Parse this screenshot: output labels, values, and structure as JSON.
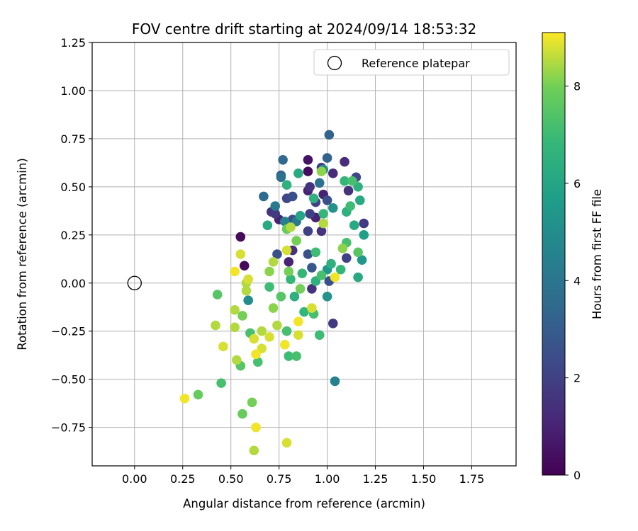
{
  "chart_data": {
    "type": "scatter",
    "title": "FOV centre drift starting at 2024/09/14 18:53:32",
    "xlabel": "Angular distance from reference (arcmin)",
    "ylabel": "Rotation from reference (arcmin)",
    "xlim": [
      -0.22,
      1.98
    ],
    "ylim": [
      -0.95,
      1.25
    ],
    "xticks": [
      0.0,
      0.25,
      0.5,
      0.75,
      1.0,
      1.25,
      1.5,
      1.75
    ],
    "xtick_labels": [
      "0.00",
      "0.25",
      "0.50",
      "0.75",
      "1.00",
      "1.25",
      "1.50",
      "1.75"
    ],
    "yticks": [
      -0.75,
      -0.5,
      -0.25,
      0.0,
      0.25,
      0.5,
      0.75,
      1.0,
      1.25
    ],
    "ytick_labels": [
      "−0.75",
      "−0.50",
      "−0.25",
      "0.00",
      "0.25",
      "0.50",
      "0.75",
      "1.00",
      "1.25"
    ],
    "grid": true,
    "legend": {
      "placement": "upper-right",
      "label": "Reference platepar"
    },
    "reference_point": {
      "x": 0.0,
      "y": 0.0
    },
    "colorbar": {
      "label": "Hours from first FF file",
      "colormap": "viridis",
      "range": [
        0,
        9.1
      ],
      "ticks": [
        0,
        2,
        4,
        6,
        8
      ],
      "tick_labels": [
        "0",
        "2",
        "4",
        "6",
        "8"
      ]
    },
    "points": [
      {
        "x": 0.55,
        "y": 0.24,
        "h": 0.3
      },
      {
        "x": 0.57,
        "y": 0.09,
        "h": 0.2
      },
      {
        "x": 0.9,
        "y": 0.64,
        "h": 0.5
      },
      {
        "x": 0.9,
        "y": 0.58,
        "h": 0.3
      },
      {
        "x": 0.91,
        "y": 0.5,
        "h": 1.5
      },
      {
        "x": 0.98,
        "y": 0.46,
        "h": 1.0
      },
      {
        "x": 1.03,
        "y": 0.57,
        "h": 1.2
      },
      {
        "x": 0.97,
        "y": 0.6,
        "h": 1.8
      },
      {
        "x": 1.09,
        "y": 0.63,
        "h": 1.3
      },
      {
        "x": 0.9,
        "y": 0.48,
        "h": 1.0
      },
      {
        "x": 0.94,
        "y": 0.42,
        "h": 2.0
      },
      {
        "x": 0.82,
        "y": 0.45,
        "h": 2.5
      },
      {
        "x": 0.79,
        "y": 0.44,
        "h": 2.2
      },
      {
        "x": 0.71,
        "y": 0.37,
        "h": 1.5
      },
      {
        "x": 0.73,
        "y": 0.36,
        "h": 1.8
      },
      {
        "x": 0.75,
        "y": 0.33,
        "h": 1.0
      },
      {
        "x": 0.82,
        "y": 0.33,
        "h": 2.5
      },
      {
        "x": 0.91,
        "y": 0.36,
        "h": 2.0
      },
      {
        "x": 0.94,
        "y": 0.34,
        "h": 1.0
      },
      {
        "x": 0.9,
        "y": 0.27,
        "h": 2.0
      },
      {
        "x": 0.97,
        "y": 0.27,
        "h": 1.5
      },
      {
        "x": 1.0,
        "y": 0.43,
        "h": 2.5
      },
      {
        "x": 1.11,
        "y": 0.48,
        "h": 1.5
      },
      {
        "x": 1.15,
        "y": 0.55,
        "h": 2.2
      },
      {
        "x": 1.19,
        "y": 0.31,
        "h": 1.8
      },
      {
        "x": 1.1,
        "y": 0.13,
        "h": 2.0
      },
      {
        "x": 1.01,
        "y": 0.01,
        "h": 2.5
      },
      {
        "x": 0.92,
        "y": -0.03,
        "h": 1.5
      },
      {
        "x": 1.03,
        "y": -0.21,
        "h": 1.8
      },
      {
        "x": 0.82,
        "y": 0.17,
        "h": 1.5
      },
      {
        "x": 0.8,
        "y": 0.11,
        "h": 1.0
      },
      {
        "x": 0.74,
        "y": 0.15,
        "h": 2.5
      },
      {
        "x": 0.92,
        "y": 0.08,
        "h": 2.8
      },
      {
        "x": 0.9,
        "y": 0.15,
        "h": 2.5
      },
      {
        "x": 1.01,
        "y": 0.77,
        "h": 3.2
      },
      {
        "x": 1.0,
        "y": 0.65,
        "h": 3.2
      },
      {
        "x": 0.77,
        "y": 0.64,
        "h": 3.5
      },
      {
        "x": 0.76,
        "y": 0.56,
        "h": 3.2
      },
      {
        "x": 0.76,
        "y": 0.55,
        "h": 3.8
      },
      {
        "x": 0.67,
        "y": 0.45,
        "h": 3.5
      },
      {
        "x": 0.73,
        "y": 0.4,
        "h": 4.2
      },
      {
        "x": 0.78,
        "y": 0.32,
        "h": 4.5
      },
      {
        "x": 0.84,
        "y": 0.32,
        "h": 4.2
      },
      {
        "x": 0.96,
        "y": 0.52,
        "h": 3.8
      },
      {
        "x": 0.98,
        "y": 0.59,
        "h": 5.0
      },
      {
        "x": 1.03,
        "y": 0.39,
        "h": 5.2
      },
      {
        "x": 1.0,
        "y": 0.07,
        "h": 5.5
      },
      {
        "x": 1.0,
        "y": -0.07,
        "h": 5.2
      },
      {
        "x": 1.04,
        "y": -0.51,
        "h": 4.5
      },
      {
        "x": 0.59,
        "y": -0.09,
        "h": 5.0
      },
      {
        "x": 0.69,
        "y": 0.3,
        "h": 6.2
      },
      {
        "x": 0.79,
        "y": 0.51,
        "h": 6.5
      },
      {
        "x": 0.85,
        "y": 0.57,
        "h": 6.2
      },
      {
        "x": 0.86,
        "y": 0.35,
        "h": 6.0
      },
      {
        "x": 0.93,
        "y": 0.44,
        "h": 6.5
      },
      {
        "x": 0.98,
        "y": 0.36,
        "h": 6.8
      },
      {
        "x": 1.09,
        "y": 0.53,
        "h": 6.8
      },
      {
        "x": 1.13,
        "y": 0.53,
        "h": 7.2
      },
      {
        "x": 1.16,
        "y": 0.5,
        "h": 6.5
      },
      {
        "x": 1.17,
        "y": 0.43,
        "h": 6.2
      },
      {
        "x": 1.12,
        "y": 0.4,
        "h": 7.0
      },
      {
        "x": 1.1,
        "y": 0.37,
        "h": 6.5
      },
      {
        "x": 1.14,
        "y": 0.3,
        "h": 6.2
      },
      {
        "x": 1.19,
        "y": 0.25,
        "h": 5.8
      },
      {
        "x": 1.18,
        "y": 0.12,
        "h": 5.5
      },
      {
        "x": 1.16,
        "y": 0.03,
        "h": 6.2
      },
      {
        "x": 1.16,
        "y": 0.16,
        "h": 7.5
      },
      {
        "x": 1.1,
        "y": 0.21,
        "h": 7.2
      },
      {
        "x": 1.07,
        "y": 0.07,
        "h": 6.8
      },
      {
        "x": 1.02,
        "y": 0.1,
        "h": 6.5
      },
      {
        "x": 0.97,
        "y": 0.04,
        "h": 7.2
      },
      {
        "x": 0.94,
        "y": 0.01,
        "h": 6.5
      },
      {
        "x": 0.94,
        "y": 0.16,
        "h": 7.0
      },
      {
        "x": 0.87,
        "y": 0.05,
        "h": 6.8
      },
      {
        "x": 0.81,
        "y": 0.02,
        "h": 6.8
      },
      {
        "x": 0.83,
        "y": -0.07,
        "h": 6.5
      },
      {
        "x": 0.88,
        "y": -0.15,
        "h": 6.8
      },
      {
        "x": 0.93,
        "y": -0.16,
        "h": 7.2
      },
      {
        "x": 0.96,
        "y": -0.27,
        "h": 7.0
      },
      {
        "x": 0.79,
        "y": -0.25,
        "h": 7.2
      },
      {
        "x": 0.8,
        "y": -0.38,
        "h": 7.0
      },
      {
        "x": 0.84,
        "y": -0.38,
        "h": 7.2
      },
      {
        "x": 0.76,
        "y": -0.07,
        "h": 7.5
      },
      {
        "x": 0.7,
        "y": -0.02,
        "h": 7.0
      },
      {
        "x": 0.6,
        "y": -0.26,
        "h": 7.2
      },
      {
        "x": 0.64,
        "y": -0.41,
        "h": 7.2
      },
      {
        "x": 0.55,
        "y": -0.43,
        "h": 7.5
      },
      {
        "x": 0.43,
        "y": -0.06,
        "h": 7.5
      },
      {
        "x": 0.45,
        "y": -0.52,
        "h": 7.2
      },
      {
        "x": 0.33,
        "y": -0.58,
        "h": 7.8
      },
      {
        "x": 0.56,
        "y": -0.68,
        "h": 7.8
      },
      {
        "x": 0.61,
        "y": -0.62,
        "h": 8.0
      },
      {
        "x": 0.79,
        "y": 0.28,
        "h": 7.8
      },
      {
        "x": 0.81,
        "y": 0.29,
        "h": 8.5
      },
      {
        "x": 0.84,
        "y": 0.22,
        "h": 8.0
      },
      {
        "x": 0.79,
        "y": 0.17,
        "h": 8.8
      },
      {
        "x": 0.8,
        "y": 0.06,
        "h": 8.0
      },
      {
        "x": 0.72,
        "y": 0.11,
        "h": 8.5
      },
      {
        "x": 0.7,
        "y": 0.06,
        "h": 8.2
      },
      {
        "x": 0.72,
        "y": -0.13,
        "h": 8.2
      },
      {
        "x": 0.74,
        "y": -0.22,
        "h": 8.5
      },
      {
        "x": 0.7,
        "y": -0.28,
        "h": 8.8
      },
      {
        "x": 0.66,
        "y": -0.34,
        "h": 8.8
      },
      {
        "x": 0.63,
        "y": -0.37,
        "h": 9.0
      },
      {
        "x": 0.66,
        "y": -0.25,
        "h": 8.5
      },
      {
        "x": 0.62,
        "y": -0.29,
        "h": 8.8
      },
      {
        "x": 0.58,
        "y": 0.0,
        "h": 8.5
      },
      {
        "x": 0.58,
        "y": -0.04,
        "h": 8.5
      },
      {
        "x": 0.59,
        "y": 0.02,
        "h": 8.8
      },
      {
        "x": 0.52,
        "y": 0.06,
        "h": 9.0
      },
      {
        "x": 0.55,
        "y": 0.15,
        "h": 8.8
      },
      {
        "x": 0.52,
        "y": -0.14,
        "h": 8.5
      },
      {
        "x": 0.52,
        "y": -0.23,
        "h": 8.5
      },
      {
        "x": 0.56,
        "y": -0.17,
        "h": 8.0
      },
      {
        "x": 0.46,
        "y": -0.33,
        "h": 8.8
      },
      {
        "x": 0.42,
        "y": -0.22,
        "h": 8.5
      },
      {
        "x": 0.53,
        "y": -0.4,
        "h": 8.5
      },
      {
        "x": 0.26,
        "y": -0.6,
        "h": 9.0
      },
      {
        "x": 0.63,
        "y": -0.75,
        "h": 9.0
      },
      {
        "x": 0.62,
        "y": -0.87,
        "h": 8.5
      },
      {
        "x": 0.79,
        "y": -0.83,
        "h": 8.8
      },
      {
        "x": 0.78,
        "y": -0.32,
        "h": 9.0
      },
      {
        "x": 0.85,
        "y": -0.2,
        "h": 9.0
      },
      {
        "x": 0.85,
        "y": -0.27,
        "h": 8.8
      },
      {
        "x": 0.92,
        "y": -0.13,
        "h": 8.8
      },
      {
        "x": 1.04,
        "y": 0.03,
        "h": 9.0
      },
      {
        "x": 0.98,
        "y": 0.31,
        "h": 8.5
      },
      {
        "x": 0.97,
        "y": 0.58,
        "h": 8.2
      },
      {
        "x": 1.08,
        "y": 0.18,
        "h": 8.2
      },
      {
        "x": 0.86,
        "y": -0.03,
        "h": 8.0
      }
    ]
  }
}
